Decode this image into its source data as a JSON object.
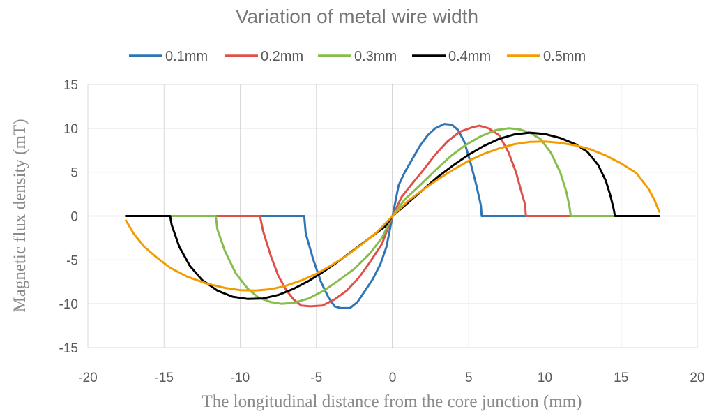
{
  "chart_data": {
    "type": "line",
    "title": "Variation of metal wire width",
    "xlabel": "The longitudinal distance from the core junction (mm)",
    "ylabel": "Magnetic flux density (mT)",
    "xlim": [
      -20,
      20
    ],
    "ylim": [
      -15,
      15
    ],
    "xticks": [
      -20,
      -15,
      -10,
      -5,
      0,
      5,
      10,
      15,
      20
    ],
    "yticks": [
      -15,
      -10,
      -5,
      0,
      5,
      10,
      15
    ],
    "grid": true,
    "legend_position": "top",
    "series": [
      {
        "name": "0.1mm",
        "color": "#2e75b6",
        "points": [
          [
            -17.5,
            0
          ],
          [
            -5.8,
            0
          ],
          [
            -5.7,
            -2
          ],
          [
            -5.2,
            -5
          ],
          [
            -4.7,
            -7.5
          ],
          [
            -4.2,
            -9.3
          ],
          [
            -3.8,
            -10.3
          ],
          [
            -3.4,
            -10.5
          ],
          [
            -2.8,
            -10.5
          ],
          [
            -2.3,
            -9.8
          ],
          [
            -1.8,
            -8.5
          ],
          [
            -1.3,
            -7.2
          ],
          [
            -0.8,
            -5.5
          ],
          [
            -0.4,
            -3.5
          ],
          [
            0,
            0
          ],
          [
            0.4,
            3.5
          ],
          [
            0.8,
            5
          ],
          [
            1.3,
            6.5
          ],
          [
            1.8,
            8
          ],
          [
            2.3,
            9.2
          ],
          [
            2.8,
            10
          ],
          [
            3.4,
            10.5
          ],
          [
            3.9,
            10.4
          ],
          [
            4.3,
            9.8
          ],
          [
            4.7,
            8.5
          ],
          [
            5.1,
            6.2
          ],
          [
            5.5,
            3.5
          ],
          [
            5.8,
            1.2
          ],
          [
            5.85,
            0
          ],
          [
            17.5,
            0
          ]
        ]
      },
      {
        "name": "0.2mm",
        "color": "#e0504a",
        "points": [
          [
            -17.5,
            0
          ],
          [
            -8.7,
            0
          ],
          [
            -8.5,
            -1.7
          ],
          [
            -8,
            -4.5
          ],
          [
            -7.5,
            -6.8
          ],
          [
            -7,
            -8.4
          ],
          [
            -6.5,
            -9.5
          ],
          [
            -6,
            -10.2
          ],
          [
            -5.4,
            -10.3
          ],
          [
            -4.6,
            -10.2
          ],
          [
            -3.8,
            -9.5
          ],
          [
            -3,
            -8.5
          ],
          [
            -2.2,
            -7
          ],
          [
            -1.5,
            -5.3
          ],
          [
            -0.7,
            -3.2
          ],
          [
            0,
            0
          ],
          [
            0.6,
            2.2
          ],
          [
            1.2,
            3.5
          ],
          [
            2,
            5.2
          ],
          [
            2.8,
            7
          ],
          [
            3.6,
            8.5
          ],
          [
            4.4,
            9.6
          ],
          [
            5.2,
            10.1
          ],
          [
            5.7,
            10.3
          ],
          [
            6.3,
            10
          ],
          [
            7,
            9.2
          ],
          [
            7.6,
            7.3
          ],
          [
            8.1,
            5
          ],
          [
            8.5,
            2.5
          ],
          [
            8.7,
            1.3
          ],
          [
            8.75,
            0
          ],
          [
            17.5,
            0
          ]
        ]
      },
      {
        "name": "0.3mm",
        "color": "#86bd4c",
        "points": [
          [
            -17.5,
            0
          ],
          [
            -11.6,
            0
          ],
          [
            -11.5,
            -1.5
          ],
          [
            -11,
            -4
          ],
          [
            -10.3,
            -6.5
          ],
          [
            -9.5,
            -8.3
          ],
          [
            -8.8,
            -9.3
          ],
          [
            -8,
            -9.8
          ],
          [
            -7.3,
            -10
          ],
          [
            -6.5,
            -9.9
          ],
          [
            -5.5,
            -9.4
          ],
          [
            -4.5,
            -8.5
          ],
          [
            -3.5,
            -7.3
          ],
          [
            -2.5,
            -6
          ],
          [
            -1.5,
            -4.3
          ],
          [
            -0.7,
            -2.5
          ],
          [
            0,
            0
          ],
          [
            0.8,
            1.9
          ],
          [
            1.8,
            3.5
          ],
          [
            2.8,
            5.2
          ],
          [
            3.8,
            6.8
          ],
          [
            4.8,
            8.1
          ],
          [
            5.8,
            9.1
          ],
          [
            6.8,
            9.8
          ],
          [
            7.6,
            10
          ],
          [
            8.3,
            9.9
          ],
          [
            9,
            9.5
          ],
          [
            9.7,
            8.8
          ],
          [
            10.4,
            7.2
          ],
          [
            11,
            5
          ],
          [
            11.4,
            2.8
          ],
          [
            11.6,
            1.2
          ],
          [
            11.7,
            0
          ],
          [
            14.5,
            0
          ]
        ]
      },
      {
        "name": "0.4mm",
        "color": "#000000",
        "points": [
          [
            -17.5,
            0
          ],
          [
            -14.6,
            0
          ],
          [
            -14.5,
            -1
          ],
          [
            -14,
            -3.5
          ],
          [
            -13.3,
            -5.7
          ],
          [
            -12.5,
            -7.3
          ],
          [
            -11.5,
            -8.5
          ],
          [
            -10.5,
            -9.2
          ],
          [
            -9.5,
            -9.45
          ],
          [
            -8.5,
            -9.4
          ],
          [
            -7.5,
            -9
          ],
          [
            -6.5,
            -8.3
          ],
          [
            -5.5,
            -7.4
          ],
          [
            -4.5,
            -6.3
          ],
          [
            -3.5,
            -5.1
          ],
          [
            -2.5,
            -3.8
          ],
          [
            -1.5,
            -2.5
          ],
          [
            -0.5,
            -1.2
          ],
          [
            0,
            0
          ],
          [
            1,
            1.5
          ],
          [
            2,
            3
          ],
          [
            3,
            4.5
          ],
          [
            4,
            5.8
          ],
          [
            5,
            7
          ],
          [
            6,
            8
          ],
          [
            7,
            8.8
          ],
          [
            8,
            9.3
          ],
          [
            9,
            9.5
          ],
          [
            10,
            9.35
          ],
          [
            11,
            8.9
          ],
          [
            12,
            8.2
          ],
          [
            12.8,
            7.3
          ],
          [
            13.5,
            5.8
          ],
          [
            14,
            4
          ],
          [
            14.3,
            2.3
          ],
          [
            14.5,
            0.9
          ],
          [
            14.6,
            0
          ],
          [
            17.5,
            0
          ]
        ]
      },
      {
        "name": "0.5mm",
        "color": "#f59b00",
        "points": [
          [
            -17.5,
            -0.5
          ],
          [
            -17,
            -2
          ],
          [
            -16.3,
            -3.5
          ],
          [
            -15.5,
            -4.7
          ],
          [
            -14.6,
            -5.9
          ],
          [
            -13.5,
            -6.9
          ],
          [
            -12.2,
            -7.7
          ],
          [
            -11,
            -8.2
          ],
          [
            -10,
            -8.45
          ],
          [
            -9,
            -8.5
          ],
          [
            -8,
            -8.35
          ],
          [
            -7,
            -7.95
          ],
          [
            -6,
            -7.35
          ],
          [
            -5,
            -6.6
          ],
          [
            -4,
            -5.6
          ],
          [
            -3,
            -4.5
          ],
          [
            -2,
            -3.2
          ],
          [
            -1,
            -1.8
          ],
          [
            0,
            0
          ],
          [
            1,
            1.7
          ],
          [
            2,
            3
          ],
          [
            3,
            4.2
          ],
          [
            4,
            5.3
          ],
          [
            5,
            6.3
          ],
          [
            6,
            7.1
          ],
          [
            7,
            7.7
          ],
          [
            8,
            8.2
          ],
          [
            9,
            8.45
          ],
          [
            10,
            8.5
          ],
          [
            11,
            8.35
          ],
          [
            12,
            8.05
          ],
          [
            13,
            7.6
          ],
          [
            14,
            6.9
          ],
          [
            15,
            6
          ],
          [
            16,
            4.9
          ],
          [
            16.8,
            3.1
          ],
          [
            17.2,
            1.8
          ],
          [
            17.5,
            0.5
          ]
        ]
      }
    ]
  }
}
